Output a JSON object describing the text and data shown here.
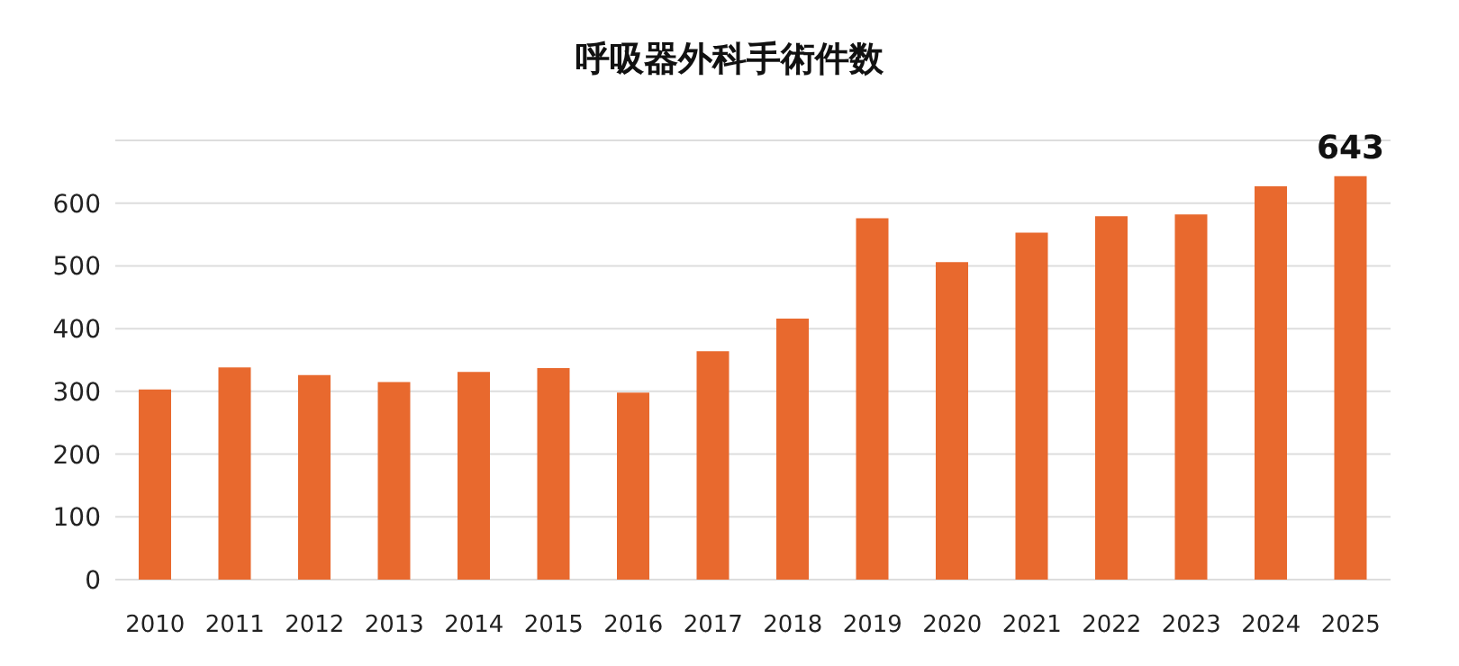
{
  "chart_data": {
    "type": "bar",
    "title": "呼吸器外科手術件数",
    "categories": [
      "2010",
      "2011",
      "2012",
      "2013",
      "2014",
      "2015",
      "2016",
      "2017",
      "2018",
      "2019",
      "2020",
      "2021",
      "2022",
      "2023",
      "2024",
      "2025"
    ],
    "values": [
      303,
      338,
      326,
      315,
      331,
      337,
      298,
      364,
      416,
      576,
      506,
      553,
      579,
      582,
      627,
      643
    ],
    "value_labels": [
      null,
      null,
      null,
      null,
      null,
      null,
      null,
      null,
      null,
      null,
      null,
      null,
      null,
      null,
      null,
      "643"
    ],
    "color": "#e8692e",
    "ylim": [
      0,
      700
    ],
    "yticks": [
      0,
      100,
      200,
      300,
      400,
      500,
      600
    ],
    "grid": "y"
  }
}
